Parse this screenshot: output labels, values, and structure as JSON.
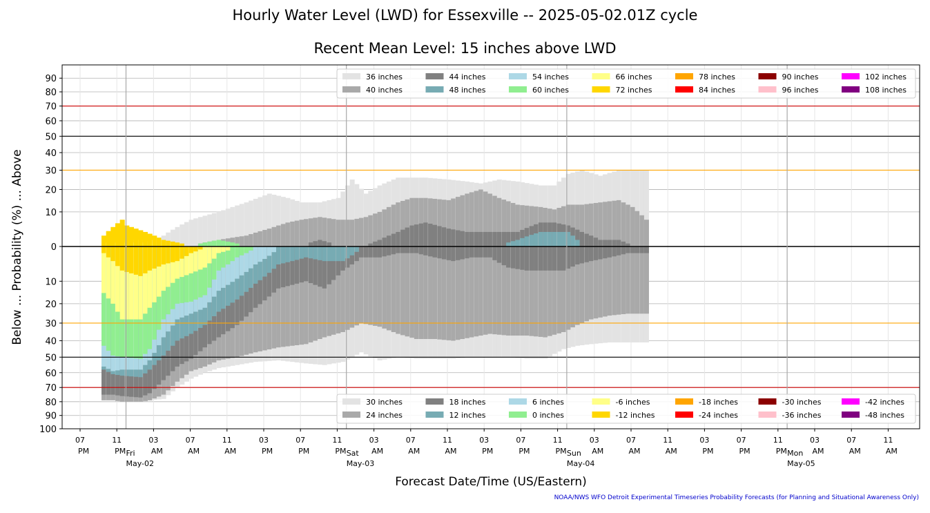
{
  "title": "Hourly Water Level (LWD) for Essexville -- 2025-05-02.01Z cycle",
  "subtitle": "Recent Mean Level: 15 inches above LWD",
  "footer": "NOAA/NWS WFO Detroit Experimental Timeseries Probability Forecasts (for Planning and Situational Awareness Only)",
  "chart_data": {
    "type": "area",
    "xlabel": "Forecast Date/Time (US/Eastern)",
    "ylabel_parts": [
      "Below",
      "...",
      "Probability (%)",
      "...",
      "Above"
    ],
    "y_ticks_above": [
      "90",
      "80",
      "70",
      "60",
      "50",
      "40",
      "30",
      "20",
      "10"
    ],
    "y_tick_center": "0",
    "y_ticks_below": [
      "10",
      "20",
      "30",
      "40",
      "50",
      "60",
      "70",
      "80",
      "90",
      "100"
    ],
    "reference_lines": [
      {
        "value": 70,
        "side": "above",
        "color": "#cc0000"
      },
      {
        "value": 50,
        "side": "above",
        "color": "#000000"
      },
      {
        "value": 30,
        "side": "above",
        "color": "#ffa500"
      },
      {
        "value": 0,
        "side": "center",
        "color": "#000000"
      },
      {
        "value": 30,
        "side": "below",
        "color": "#ffa500"
      },
      {
        "value": 50,
        "side": "below",
        "color": "#000000"
      },
      {
        "value": 70,
        "side": "below",
        "color": "#cc0000"
      }
    ],
    "x_time_ticks": [
      {
        "hh": "07",
        "ap": "PM"
      },
      {
        "hh": "11",
        "ap": "PM"
      },
      {
        "hh": "03",
        "ap": "AM"
      },
      {
        "hh": "07",
        "ap": "AM"
      },
      {
        "hh": "11",
        "ap": "AM"
      },
      {
        "hh": "03",
        "ap": "PM"
      },
      {
        "hh": "07",
        "ap": "PM"
      },
      {
        "hh": "11",
        "ap": "PM"
      },
      {
        "hh": "03",
        "ap": "AM"
      },
      {
        "hh": "07",
        "ap": "AM"
      },
      {
        "hh": "11",
        "ap": "AM"
      },
      {
        "hh": "03",
        "ap": "PM"
      },
      {
        "hh": "07",
        "ap": "PM"
      },
      {
        "hh": "11",
        "ap": "PM"
      },
      {
        "hh": "03",
        "ap": "AM"
      },
      {
        "hh": "07",
        "ap": "AM"
      },
      {
        "hh": "11",
        "ap": "AM"
      },
      {
        "hh": "03",
        "ap": "PM"
      },
      {
        "hh": "07",
        "ap": "PM"
      },
      {
        "hh": "11",
        "ap": "PM"
      },
      {
        "hh": "03",
        "ap": "AM"
      },
      {
        "hh": "07",
        "ap": "AM"
      },
      {
        "hh": "11",
        "ap": "AM"
      }
    ],
    "day_markers": [
      {
        "day": "Fri",
        "date": "May-02",
        "tick_index": 1.25
      },
      {
        "day": "Sat",
        "date": "May-03",
        "tick_index": 7.25
      },
      {
        "day": "Sun",
        "date": "May-04",
        "tick_index": 13.25
      },
      {
        "day": "Mon",
        "date": "May-05",
        "tick_index": 19.25
      }
    ],
    "legend_above": [
      {
        "label": "36 inches",
        "color": "#e3e3e3"
      },
      {
        "label": "40 inches",
        "color": "#a9a9a9"
      },
      {
        "label": "44 inches",
        "color": "#808080"
      },
      {
        "label": "48 inches",
        "color": "#77abb3"
      },
      {
        "label": "54 inches",
        "color": "#add8e6"
      },
      {
        "label": "60 inches",
        "color": "#90ee90"
      },
      {
        "label": "66 inches",
        "color": "#ffff88"
      },
      {
        "label": "72 inches",
        "color": "#ffd700"
      },
      {
        "label": "78 inches",
        "color": "#ffa500"
      },
      {
        "label": "84 inches",
        "color": "#ff0000"
      },
      {
        "label": "90 inches",
        "color": "#8b0000"
      },
      {
        "label": "96 inches",
        "color": "#ffc0cb"
      },
      {
        "label": "102 inches",
        "color": "#ff00ff"
      },
      {
        "label": "108 inches",
        "color": "#800080"
      }
    ],
    "legend_below": [
      {
        "label": "30 inches",
        "color": "#e3e3e3"
      },
      {
        "label": "24 inches",
        "color": "#a9a9a9"
      },
      {
        "label": "18 inches",
        "color": "#808080"
      },
      {
        "label": "12 inches",
        "color": "#77abb3"
      },
      {
        "label": "6 inches",
        "color": "#add8e6"
      },
      {
        "label": "0 inches",
        "color": "#90ee90"
      },
      {
        "label": "-6 inches",
        "color": "#ffff88"
      },
      {
        "label": "-12 inches",
        "color": "#ffd700"
      },
      {
        "label": "-18 inches",
        "color": "#ffa500"
      },
      {
        "label": "-24 inches",
        "color": "#ff0000"
      },
      {
        "label": "-30 inches",
        "color": "#8b0000"
      },
      {
        "label": "-36 inches",
        "color": "#ffc0cb"
      },
      {
        "label": "-42 inches",
        "color": "#ff00ff"
      },
      {
        "label": "-48 inches",
        "color": "#800080"
      }
    ],
    "series_above_colors": [
      "#e3e3e3",
      "#a9a9a9",
      "#808080",
      "#77abb3",
      "#add8e6",
      "#90ee90",
      "#ffff88",
      "#ffd700"
    ],
    "above_keyframes": [
      {
        "i": 0,
        "v": [
          0,
          0,
          0,
          0,
          0,
          0,
          0,
          2
        ]
      },
      {
        "i": 4,
        "v": [
          0,
          0,
          0,
          0,
          0,
          0,
          0,
          7
        ]
      },
      {
        "i": 5,
        "v": [
          0,
          0,
          0,
          0,
          0,
          0,
          1,
          5
        ]
      },
      {
        "i": 9,
        "v": [
          0,
          0,
          0,
          0,
          0,
          0,
          1,
          3
        ]
      },
      {
        "i": 13,
        "v": [
          2,
          0,
          0,
          0,
          0,
          0,
          0,
          1
        ]
      },
      {
        "i": 19,
        "v": [
          7,
          0,
          0,
          0,
          0,
          0,
          0,
          0
        ]
      },
      {
        "i": 25,
        "v": [
          10,
          1,
          0,
          0,
          0,
          1,
          0,
          0
        ]
      },
      {
        "i": 31,
        "v": [
          14,
          2,
          0,
          0,
          0,
          0,
          0,
          0
        ]
      },
      {
        "i": 36,
        "v": [
          18,
          4,
          0,
          0,
          0,
          0,
          0,
          0
        ]
      },
      {
        "i": 40,
        "v": [
          16,
          6,
          0,
          0,
          0,
          0,
          0,
          0
        ]
      },
      {
        "i": 43,
        "v": [
          14,
          7,
          0,
          0,
          0,
          0,
          0,
          0
        ]
      },
      {
        "i": 47,
        "v": [
          14,
          8,
          1,
          0,
          0,
          0,
          0,
          0
        ]
      },
      {
        "i": 51,
        "v": [
          16,
          7,
          0,
          0,
          0,
          0,
          0,
          0
        ]
      },
      {
        "i": 54,
        "v": [
          25,
          7,
          0,
          0,
          0,
          0,
          0,
          0
        ]
      },
      {
        "i": 57,
        "v": [
          18,
          8,
          0,
          0,
          0,
          0,
          0,
          0
        ]
      },
      {
        "i": 60,
        "v": [
          22,
          10,
          1,
          0,
          0,
          0,
          0,
          0
        ]
      },
      {
        "i": 64,
        "v": [
          26,
          14,
          3,
          0,
          0,
          0,
          0,
          0
        ]
      },
      {
        "i": 67,
        "v": [
          26,
          16,
          5,
          0,
          0,
          0,
          0,
          0
        ]
      },
      {
        "i": 70,
        "v": [
          26,
          16,
          6,
          0,
          0,
          0,
          0,
          0
        ]
      },
      {
        "i": 75,
        "v": [
          25,
          15,
          4,
          0,
          0,
          0,
          0,
          0
        ]
      },
      {
        "i": 79,
        "v": [
          24,
          18,
          3,
          0,
          0,
          0,
          0,
          0
        ]
      },
      {
        "i": 82,
        "v": [
          23,
          20,
          3,
          0,
          0,
          0,
          0,
          0
        ]
      },
      {
        "i": 86,
        "v": [
          25,
          16,
          3,
          0,
          0,
          0,
          0,
          0
        ]
      },
      {
        "i": 90,
        "v": [
          24,
          13,
          3,
          1,
          0,
          0,
          0,
          0
        ]
      },
      {
        "i": 95,
        "v": [
          22,
          12,
          6,
          3,
          0,
          0,
          0,
          0
        ]
      },
      {
        "i": 98,
        "v": [
          22,
          11,
          6,
          3,
          0,
          0,
          0,
          0
        ]
      },
      {
        "i": 101,
        "v": [
          28,
          13,
          5,
          3,
          0,
          0,
          0,
          0
        ]
      },
      {
        "i": 104,
        "v": [
          30,
          13,
          3,
          0,
          0,
          0,
          0,
          0
        ]
      },
      {
        "i": 108,
        "v": [
          27,
          14,
          1,
          0,
          0,
          0,
          0,
          0
        ]
      },
      {
        "i": 112,
        "v": [
          30,
          15,
          1,
          0,
          0,
          0,
          0,
          0
        ]
      },
      {
        "i": 115,
        "v": [
          30,
          12,
          0,
          0,
          0,
          0,
          0,
          0
        ]
      },
      {
        "i": 118,
        "v": [
          30,
          7,
          0,
          0,
          0,
          0,
          0,
          0
        ]
      }
    ],
    "series_below_colors": [
      "#ffd700",
      "#ffff88",
      "#90ee90",
      "#add8e6",
      "#77abb3",
      "#808080",
      "#a9a9a9",
      "#e3e3e3"
    ],
    "below_keyframes": [
      {
        "i": 0,
        "v": [
          1,
          15,
          43,
          56,
          58,
          75,
          79,
          79
        ]
      },
      {
        "i": 2,
        "v": [
          3,
          20,
          49,
          59,
          61,
          75,
          79,
          79
        ]
      },
      {
        "i": 4,
        "v": [
          6,
          28,
          50,
          58,
          62,
          76,
          80,
          80
        ]
      },
      {
        "i": 8,
        "v": [
          8,
          28,
          51,
          58,
          63,
          77,
          80,
          80
        ]
      },
      {
        "i": 10,
        "v": [
          6,
          22,
          45,
          52,
          58,
          74,
          79,
          79
        ]
      },
      {
        "i": 13,
        "v": [
          4,
          14,
          28,
          38,
          49,
          65,
          75,
          78
        ]
      },
      {
        "i": 16,
        "v": [
          3,
          9,
          20,
          28,
          40,
          56,
          66,
          70
        ]
      },
      {
        "i": 19,
        "v": [
          1,
          7,
          19,
          25,
          36,
          51,
          59,
          64
        ]
      },
      {
        "i": 22,
        "v": [
          0,
          5,
          16,
          22,
          31,
          44,
          56,
          60
        ]
      },
      {
        "i": 25,
        "v": [
          0,
          1,
          6,
          14,
          24,
          38,
          52,
          57
        ]
      },
      {
        "i": 29,
        "v": [
          0,
          0,
          2,
          9,
          18,
          31,
          50,
          55
        ]
      },
      {
        "i": 33,
        "v": [
          0,
          0,
          0,
          4,
          11,
          22,
          47,
          53
        ]
      },
      {
        "i": 38,
        "v": [
          0,
          0,
          0,
          0,
          4,
          13,
          44,
          52
        ]
      },
      {
        "i": 44,
        "v": [
          0,
          0,
          0,
          0,
          2,
          10,
          42,
          54
        ]
      },
      {
        "i": 48,
        "v": [
          0,
          0,
          0,
          0,
          3,
          13,
          38,
          55
        ]
      },
      {
        "i": 52,
        "v": [
          0,
          0,
          0,
          0,
          3,
          6,
          35,
          53
        ]
      },
      {
        "i": 56,
        "v": [
          0,
          0,
          0,
          0,
          0,
          2,
          30,
          47
        ]
      },
      {
        "i": 60,
        "v": [
          0,
          0,
          0,
          0,
          0,
          2,
          32,
          52
        ]
      },
      {
        "i": 64,
        "v": [
          0,
          0,
          0,
          0,
          0,
          1,
          36,
          50
        ]
      },
      {
        "i": 68,
        "v": [
          0,
          0,
          0,
          0,
          0,
          1,
          39,
          51
        ]
      },
      {
        "i": 72,
        "v": [
          0,
          0,
          0,
          0,
          0,
          2,
          39,
          51
        ]
      },
      {
        "i": 76,
        "v": [
          0,
          0,
          0,
          0,
          0,
          3,
          40,
          51
        ]
      },
      {
        "i": 80,
        "v": [
          0,
          0,
          0,
          0,
          0,
          2,
          38,
          50
        ]
      },
      {
        "i": 84,
        "v": [
          0,
          0,
          0,
          0,
          0,
          2,
          36,
          50
        ]
      },
      {
        "i": 88,
        "v": [
          0,
          0,
          0,
          0,
          0,
          5,
          37,
          50
        ]
      },
      {
        "i": 92,
        "v": [
          0,
          0,
          0,
          0,
          0,
          6,
          37,
          51
        ]
      },
      {
        "i": 96,
        "v": [
          0,
          0,
          0,
          0,
          0,
          6,
          38,
          51
        ]
      },
      {
        "i": 100,
        "v": [
          0,
          0,
          0,
          0,
          0,
          6,
          35,
          45
        ]
      },
      {
        "i": 103,
        "v": [
          0,
          0,
          0,
          0,
          0,
          4,
          31,
          43
        ]
      },
      {
        "i": 106,
        "v": [
          0,
          0,
          0,
          0,
          0,
          3,
          28,
          42
        ]
      },
      {
        "i": 110,
        "v": [
          0,
          0,
          0,
          0,
          0,
          2,
          26,
          41
        ]
      },
      {
        "i": 114,
        "v": [
          0,
          0,
          0,
          0,
          0,
          1,
          25,
          41
        ]
      },
      {
        "i": 118,
        "v": [
          0,
          0,
          0,
          0,
          0,
          1,
          25,
          41
        ]
      }
    ]
  }
}
